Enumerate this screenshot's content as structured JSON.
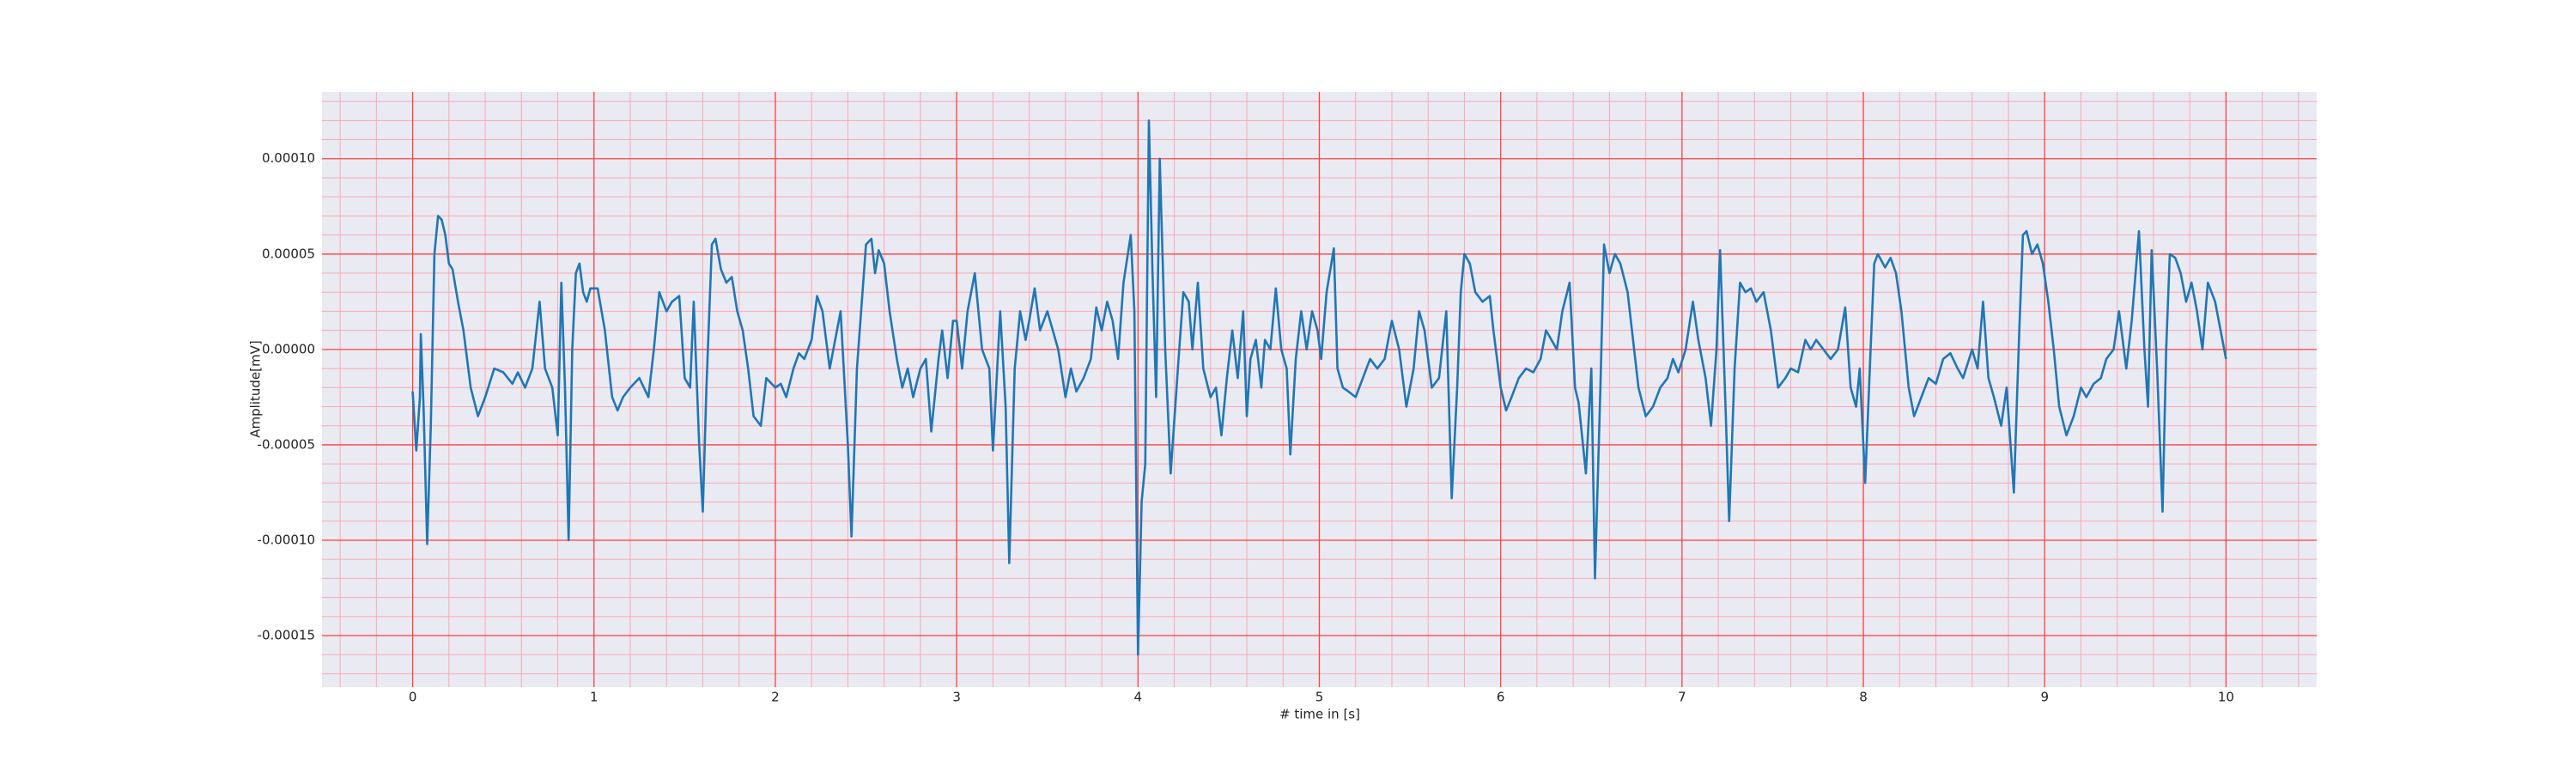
{
  "chart_data": {
    "type": "line",
    "xlabel": "# time in [s]",
    "ylabel": "Amplitude[mV]",
    "color": "#1f77b4",
    "background": "#eaeaf2",
    "grid": true,
    "grid_color": "#ff4040",
    "minor_grid_color": "#f7a9b4",
    "minor_divisions": 5,
    "xlim": [
      -0.5,
      10.5
    ],
    "ylim": [
      -0.000177,
      0.000135
    ],
    "xticks": [
      0,
      1,
      2,
      3,
      4,
      5,
      6,
      7,
      8,
      9,
      10
    ],
    "yticks": [
      {
        "value": -0.00015,
        "label": "-0.00015"
      },
      {
        "value": -0.0001,
        "label": "-0.00010"
      },
      {
        "value": -5e-05,
        "label": "-0.00005"
      },
      {
        "value": 0,
        "label": "0.00000"
      },
      {
        "value": 5e-05,
        "label": "0.00005"
      },
      {
        "value": 0.0001,
        "label": "0.00010"
      }
    ],
    "x": [
      0,
      0.02,
      0.04,
      0.045,
      0.06,
      0.08,
      0.1,
      0.12,
      0.14,
      0.16,
      0.18,
      0.2,
      0.22,
      0.25,
      0.28,
      0.32,
      0.36,
      0.4,
      0.45,
      0.5,
      0.55,
      0.58,
      0.62,
      0.66,
      0.7,
      0.73,
      0.77,
      0.8,
      0.82,
      0.84,
      0.86,
      0.88,
      0.9,
      0.92,
      0.94,
      0.96,
      0.98,
      1.02,
      1.06,
      1.1,
      1.13,
      1.16,
      1.2,
      1.25,
      1.3,
      1.33,
      1.36,
      1.4,
      1.43,
      1.47,
      1.5,
      1.53,
      1.55,
      1.58,
      1.6,
      1.62,
      1.65,
      1.67,
      1.7,
      1.73,
      1.76,
      1.79,
      1.82,
      1.85,
      1.88,
      1.92,
      1.95,
      2,
      2.03,
      2.06,
      2.1,
      2.13,
      2.16,
      2.2,
      2.23,
      2.26,
      2.3,
      2.33,
      2.36,
      2.4,
      2.42,
      2.45,
      2.5,
      2.53,
      2.55,
      2.57,
      2.6,
      2.63,
      2.67,
      2.7,
      2.73,
      2.76,
      2.8,
      2.83,
      2.86,
      2.9,
      2.92,
      2.95,
      2.98,
      3,
      3.03,
      3.06,
      3.1,
      3.14,
      3.18,
      3.2,
      3.24,
      3.27,
      3.29,
      3.32,
      3.35,
      3.38,
      3.4,
      3.43,
      3.46,
      3.5,
      3.53,
      3.56,
      3.6,
      3.63,
      3.66,
      3.7,
      3.74,
      3.77,
      3.8,
      3.83,
      3.86,
      3.89,
      3.92,
      3.96,
      3.98,
      4,
      4.02,
      4.04,
      4.06,
      4.08,
      4.1,
      4.12,
      4.15,
      4.18,
      4.22,
      4.25,
      4.28,
      4.3,
      4.33,
      4.36,
      4.4,
      4.43,
      4.46,
      4.49,
      4.52,
      4.55,
      4.58,
      4.6,
      4.62,
      4.65,
      4.68,
      4.7,
      4.73,
      4.76,
      4.79,
      4.82,
      4.84,
      4.87,
      4.9,
      4.93,
      4.96,
      4.99,
      5.01,
      5.04,
      5.08,
      5.1,
      5.13,
      5.16,
      5.2,
      5.24,
      5.28,
      5.32,
      5.36,
      5.4,
      5.44,
      5.48,
      5.52,
      5.55,
      5.58,
      5.62,
      5.66,
      5.7,
      5.73,
      5.76,
      5.78,
      5.8,
      5.83,
      5.86,
      5.9,
      5.94,
      5.96,
      6,
      6.03,
      6.06,
      6.1,
      6.14,
      6.18,
      6.22,
      6.25,
      6.28,
      6.31,
      6.34,
      6.38,
      6.41,
      6.43,
      6.47,
      6.5,
      6.52,
      6.55,
      6.57,
      6.6,
      6.63,
      6.66,
      6.7,
      6.73,
      6.76,
      6.8,
      6.84,
      6.88,
      6.92,
      6.95,
      6.98,
      7.02,
      7.06,
      7.09,
      7.13,
      7.16,
      7.19,
      7.21,
      7.24,
      7.26,
      7.29,
      7.32,
      7.35,
      7.38,
      7.41,
      7.45,
      7.49,
      7.53,
      7.57,
      7.6,
      7.64,
      7.68,
      7.71,
      7.74,
      7.78,
      7.82,
      7.86,
      7.9,
      7.93,
      7.96,
      7.98,
      8.01,
      8.04,
      8.06,
      8.08,
      8.12,
      8.15,
      8.18,
      8.21,
      8.25,
      8.28,
      8.32,
      8.36,
      8.4,
      8.44,
      8.48,
      8.52,
      8.55,
      8.6,
      8.63,
      8.66,
      8.69,
      8.72,
      8.76,
      8.79,
      8.83,
      8.86,
      8.88,
      8.9,
      8.93,
      8.96,
      8.99,
      9.02,
      9.05,
      9.08,
      9.12,
      9.16,
      9.2,
      9.23,
      9.27,
      9.31,
      9.34,
      9.38,
      9.41,
      9.45,
      9.48,
      9.52,
      9.55,
      9.57,
      9.59,
      9.62,
      9.65,
      9.67,
      9.69,
      9.72,
      9.75,
      9.78,
      9.81,
      9.84,
      9.87,
      9.9,
      9.94,
      10
    ],
    "values": [
      -2.2e-05,
      -5.3e-05,
      -2.5e-05,
      8e-06,
      -3e-05,
      -0.000102,
      -4e-05,
      5e-05,
      7e-05,
      6.8e-05,
      6e-05,
      4.5e-05,
      4.2e-05,
      2.5e-05,
      1e-05,
      -2e-05,
      -3.5e-05,
      -2.5e-05,
      -1e-05,
      -1.2e-05,
      -1.8e-05,
      -1.2e-05,
      -2e-05,
      -1e-05,
      2.5e-05,
      -1e-05,
      -2e-05,
      -4.5e-05,
      3.5e-05,
      -2e-05,
      -0.0001,
      0,
      4e-05,
      4.5e-05,
      3e-05,
      2.5e-05,
      3.2e-05,
      3.2e-05,
      1e-05,
      -2.5e-05,
      -3.2e-05,
      -2.5e-05,
      -2e-05,
      -1.5e-05,
      -2.5e-05,
      0,
      3e-05,
      2e-05,
      2.5e-05,
      2.8e-05,
      -1.5e-05,
      -2e-05,
      2.5e-05,
      -5e-05,
      -8.5e-05,
      -2e-05,
      5.5e-05,
      5.8e-05,
      4.2e-05,
      3.5e-05,
      3.8e-05,
      2e-05,
      1e-05,
      -1e-05,
      -3.5e-05,
      -4e-05,
      -1.5e-05,
      -2e-05,
      -1.8e-05,
      -2.5e-05,
      -1e-05,
      -2e-06,
      -5e-06,
      5e-06,
      2.8e-05,
      2e-05,
      -1e-05,
      5e-06,
      2e-05,
      -5e-05,
      -9.8e-05,
      -1e-05,
      5.5e-05,
      5.8e-05,
      4e-05,
      5.2e-05,
      4.5e-05,
      2e-05,
      -5e-06,
      -2e-05,
      -1e-05,
      -2.5e-05,
      -1e-05,
      -5e-06,
      -4.3e-05,
      -5e-06,
      1e-05,
      -1.5e-05,
      1.5e-05,
      1.5e-05,
      -1e-05,
      2e-05,
      4e-05,
      0,
      -1e-05,
      -5.3e-05,
      2e-05,
      -3e-05,
      -0.000112,
      -1e-05,
      2e-05,
      5e-06,
      1.5e-05,
      3.2e-05,
      1e-05,
      2e-05,
      1e-05,
      0,
      -2.5e-05,
      -1e-05,
      -2.2e-05,
      -1.5e-05,
      -5e-06,
      2.2e-05,
      1e-05,
      2.5e-05,
      1.5e-05,
      -5e-06,
      3.5e-05,
      6e-05,
      2e-05,
      -0.00016,
      -8e-05,
      -6e-05,
      0.00012,
      4e-05,
      -2.5e-05,
      0.0001,
      0,
      -6.5e-05,
      -1e-05,
      3e-05,
      2.5e-05,
      0,
      3.5e-05,
      -1e-05,
      -2.5e-05,
      -2e-05,
      -4.5e-05,
      -1.5e-05,
      1e-05,
      -1.5e-05,
      2e-05,
      -3.5e-05,
      -5e-06,
      5e-06,
      -2e-05,
      5e-06,
      0,
      3.2e-05,
      0,
      -1e-05,
      -5.5e-05,
      -5e-06,
      2e-05,
      0,
      2e-05,
      1e-05,
      -5e-06,
      3e-05,
      5.3e-05,
      -1e-05,
      -2e-05,
      -2.2e-05,
      -2.5e-05,
      -1.5e-05,
      -5e-06,
      -1e-05,
      -5e-06,
      1.5e-05,
      0,
      -3e-05,
      -1e-05,
      2e-05,
      1e-05,
      -2e-05,
      -1.5e-05,
      2e-05,
      -7.8e-05,
      -2e-05,
      3e-05,
      5e-05,
      4.5e-05,
      3e-05,
      2.5e-05,
      2.8e-05,
      1e-05,
      -2e-05,
      -3.2e-05,
      -2.5e-05,
      -1.5e-05,
      -1e-05,
      -1.2e-05,
      -5e-06,
      1e-05,
      5e-06,
      0,
      2e-05,
      3.5e-05,
      -2e-05,
      -2.8e-05,
      -6.5e-05,
      -1e-05,
      -0.00012,
      -2e-05,
      5.5e-05,
      4e-05,
      5e-05,
      4.5e-05,
      3e-05,
      5e-06,
      -2e-05,
      -3.5e-05,
      -3e-05,
      -2e-05,
      -1.5e-05,
      -5e-06,
      -1.2e-05,
      0,
      2.5e-05,
      5e-06,
      -1.5e-05,
      -4e-05,
      0,
      5.2e-05,
      -3e-05,
      -9e-05,
      -1e-05,
      3.5e-05,
      3e-05,
      3.2e-05,
      2.5e-05,
      3e-05,
      1e-05,
      -2e-05,
      -1.5e-05,
      -1e-05,
      -1.2e-05,
      5e-06,
      0,
      5e-06,
      0,
      -5e-06,
      0,
      2.2e-05,
      -2e-05,
      -3e-05,
      -1e-05,
      -7e-05,
      0,
      4.5e-05,
      5e-05,
      4.3e-05,
      4.8e-05,
      4e-05,
      2e-05,
      -2e-05,
      -3.5e-05,
      -2.5e-05,
      -1.5e-05,
      -1.8e-05,
      -5e-06,
      -2e-06,
      -1e-05,
      -1.5e-05,
      0,
      -1e-05,
      2.5e-05,
      -1.5e-05,
      -2.5e-05,
      -4e-05,
      -2e-05,
      -7.5e-05,
      1e-05,
      6e-05,
      6.2e-05,
      5e-05,
      5.5e-05,
      4.5e-05,
      2.5e-05,
      0,
      -3e-05,
      -4.5e-05,
      -3.5e-05,
      -2e-05,
      -2.5e-05,
      -1.8e-05,
      -1.5e-05,
      -5e-06,
      0,
      2e-05,
      -1e-05,
      1.5e-05,
      6.2e-05,
      0,
      -3e-05,
      5.2e-05,
      -1e-05,
      -8.5e-05,
      0,
      5e-05,
      4.8e-05,
      4e-05,
      2.5e-05,
      3.5e-05,
      2e-05,
      0,
      3.5e-05,
      2.5e-05,
      -5e-06
    ]
  }
}
